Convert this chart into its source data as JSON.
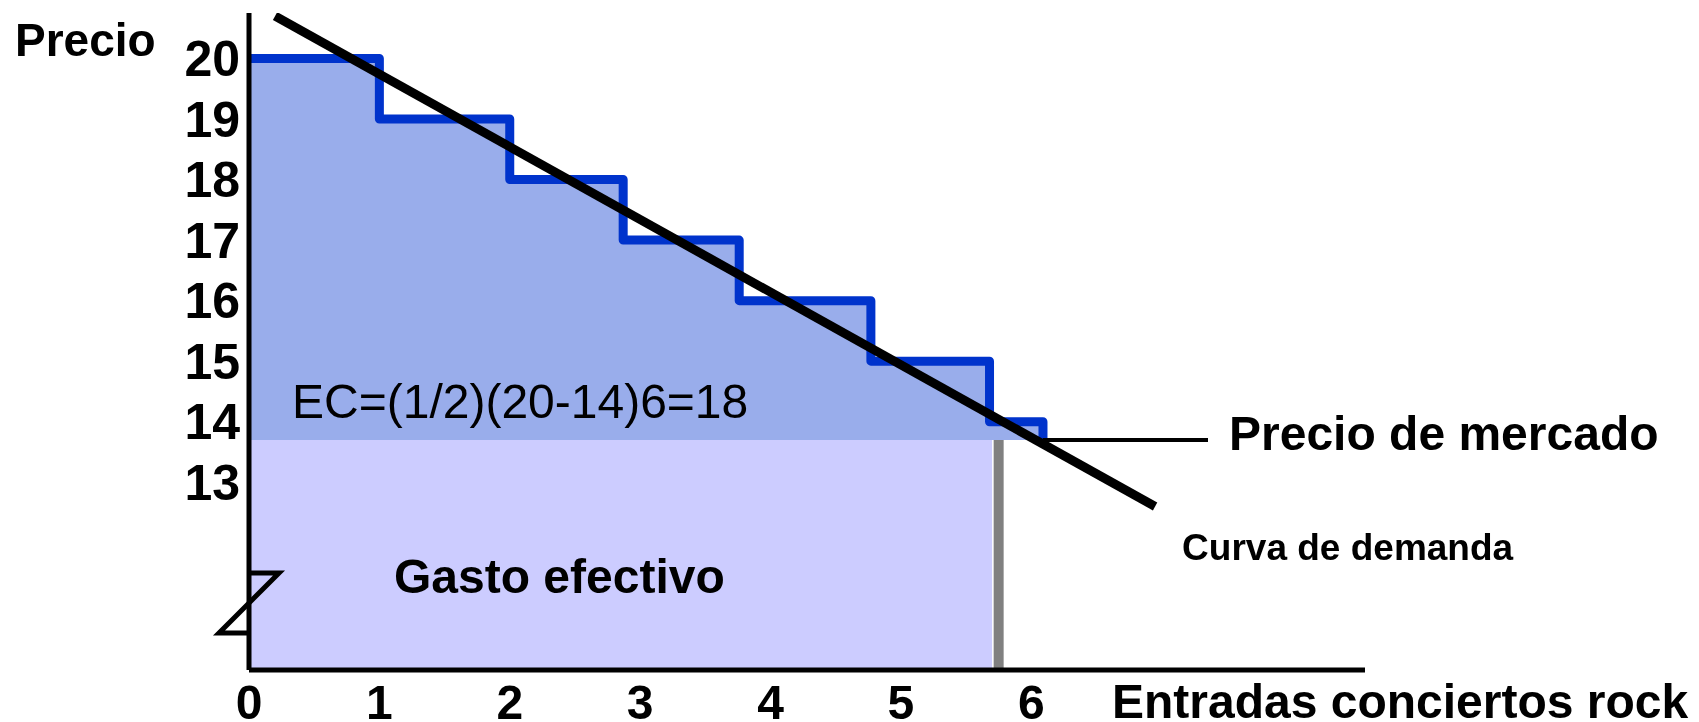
{
  "chart_data": {
    "type": "step",
    "ylabel": "Precio",
    "xlabel": "Entradas conciertos rock",
    "annotations": [
      "EC=(1/2)(20-14)6=18",
      "Gasto efectivo"
    ],
    "xlim": [
      0,
      8.56
    ],
    "ylim": [
      9.9,
      20.75
    ],
    "xticks": [
      0,
      1,
      2,
      3,
      4,
      5,
      6
    ],
    "yticks": [
      13,
      14,
      15,
      16,
      17,
      18,
      19,
      20
    ],
    "series": [
      {
        "type": "area",
        "color": "#ccccff",
        "x": [
          0,
          5.7
        ],
        "values": [
          13.7,
          13.7
        ]
      },
      {
        "color": "#0033cc",
        "x": [
          0,
          1,
          2,
          2.87,
          3.76,
          4.77,
          5.68,
          6.09,
          6.09
        ],
        "values": [
          20,
          19,
          18,
          17,
          16,
          15,
          14,
          14,
          13.7
        ],
        "lower": [
          13.7,
          13.7,
          13.7,
          13.7,
          13.7,
          13.7,
          13.7,
          13.7,
          13.7
        ],
        "upper": [
          20,
          19,
          18,
          17,
          16,
          15,
          14,
          14,
          13.7
        ]
      },
      {
        "type": "line",
        "name": "Curva de demanda",
        "color": "#000000",
        "x": [
          0.2,
          6.95
        ],
        "values": [
          20.7,
          12.6
        ]
      }
    ],
    "ref_lines": [
      {
        "axis": "y",
        "value": 13.7,
        "label": "Precio de mercado",
        "color": "#000000"
      },
      {
        "axis": "x",
        "value": 5.75,
        "color": "#808080"
      }
    ]
  }
}
